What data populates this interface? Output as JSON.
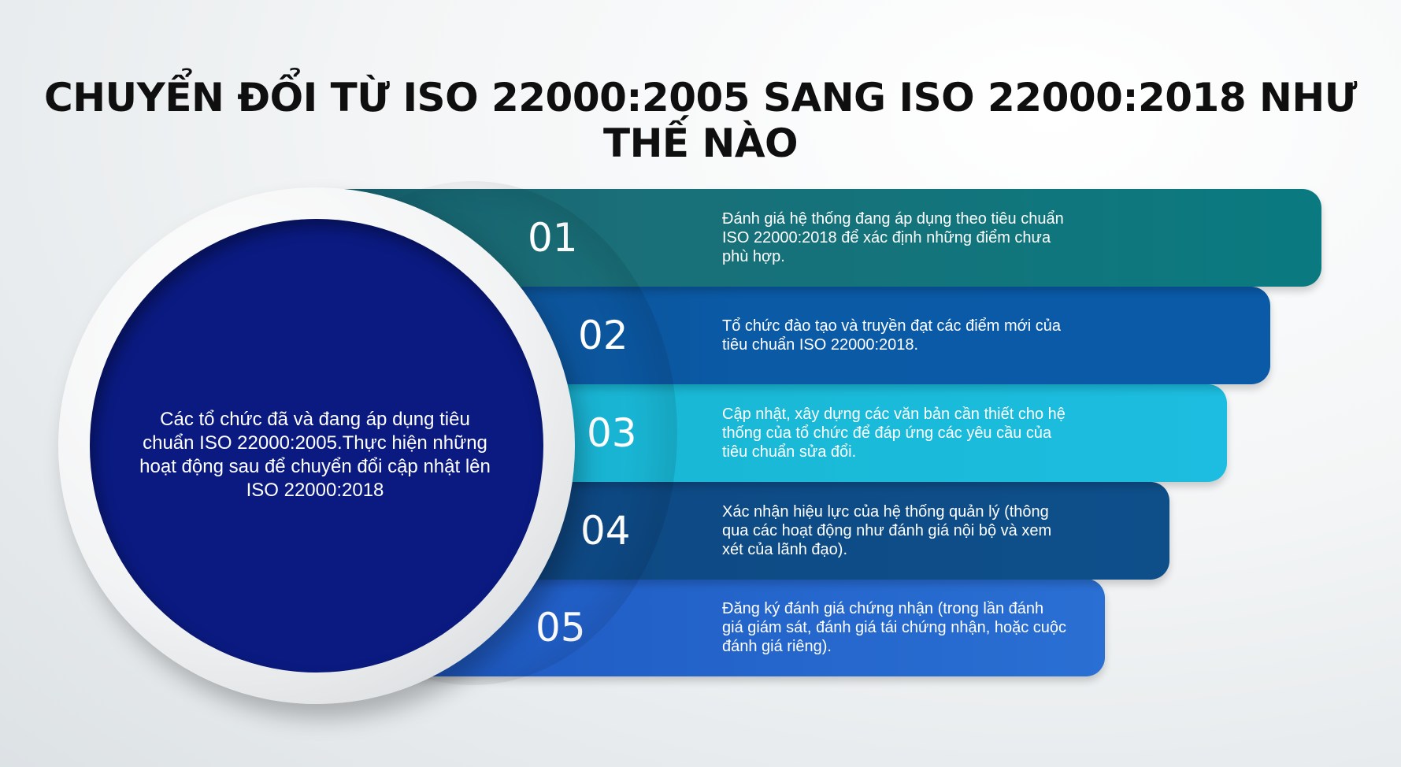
{
  "title": "CHUYỂN ĐỔI TỪ ISO 22000:2005 SANG ISO 22000:2018 NHƯ THẾ NÀO",
  "center_text": "Các tổ chức đã và đang áp dụng tiêu chuẩn ISO 22000:2005.Thực hiện những hoạt động sau để chuyển đổi cập nhật lên ISO 22000:2018",
  "steps": [
    {
      "number": "01",
      "text": "Đánh giá hệ thống đang áp dụng theo tiêu chuẩn ISO 22000:2018 để xác định những điểm chưa phù hợp.",
      "color": "#0a7a80"
    },
    {
      "number": "02",
      "text": "Tổ chức đào tạo và truyền đạt các điểm mới của tiêu chuẩn ISO 22000:2018.",
      "color": "#0a5aa8"
    },
    {
      "number": "03",
      "text": "Cập nhật, xây dựng các văn bản cần thiết cho hệ thống của tổ chức để đáp ứng các yêu cầu của tiêu chuẩn sửa đổi.",
      "color": "#1cbde0"
    },
    {
      "number": "04",
      "text": "Xác nhận hiệu lực của hệ thống quản lý (thông qua các hoạt động như đánh giá nội bộ và xem xét của lãnh đạo).",
      "color": "#0e4f8a"
    },
    {
      "number": "05",
      "text": "Đăng ký đánh giá chứng nhận (trong lần đánh giá giám sát, đánh giá tái chứng nhận, hoặc cuộc đánh giá riêng).",
      "color": "#2a6fd3"
    }
  ],
  "colors": {
    "core": "#0a1a80",
    "title": "#0f0f0f"
  }
}
